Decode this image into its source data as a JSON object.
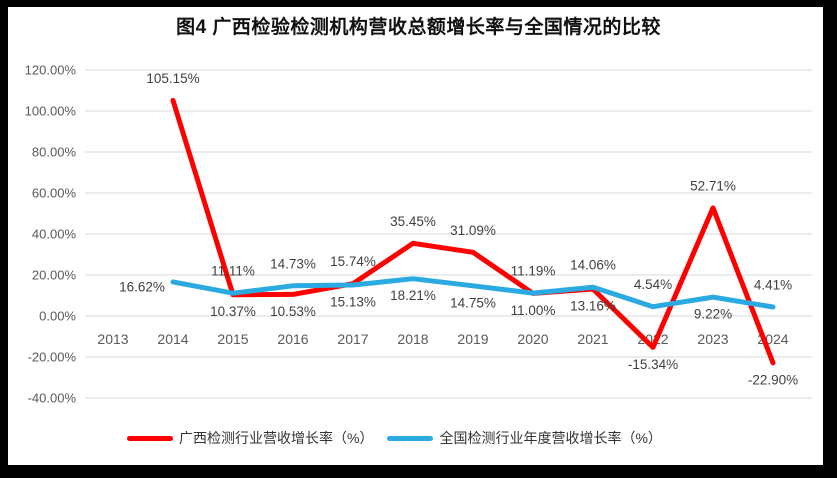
{
  "title": "图4 广西检验检测机构营收总额增长率与全国情况的比较",
  "chart_data": {
    "type": "line",
    "categories": [
      "2013",
      "2014",
      "2015",
      "2016",
      "2017",
      "2018",
      "2019",
      "2020",
      "2021",
      "2022",
      "2023",
      "2024"
    ],
    "ylim": [
      -40,
      120
    ],
    "y_tick_step": 20,
    "y_tick_labels": [
      "120.00%",
      "100.00%",
      "80.00%",
      "60.00%",
      "40.00%",
      "20.00%",
      "0.00%",
      "-20.00%",
      "-40.00%"
    ],
    "grid": true,
    "legend_position": "bottom",
    "series": [
      {
        "name": "广西检测行业营收增长率（%）",
        "color": "#FE0000",
        "start_category": "2014",
        "values": [
          105.15,
          10.37,
          10.53,
          15.74,
          35.45,
          31.09,
          11.0,
          13.16,
          -15.34,
          52.71,
          -22.9
        ],
        "label_positions": [
          "above",
          "below",
          "below",
          "above",
          "above",
          "above",
          "below",
          "below",
          "below",
          "above",
          "below"
        ]
      },
      {
        "name": "全国检测行业年度营收增长率（%）",
        "color": "#2BAAE1",
        "start_category": "2014",
        "values": [
          16.62,
          11.11,
          14.73,
          15.13,
          18.21,
          14.75,
          11.19,
          14.06,
          4.54,
          9.22,
          4.41
        ],
        "label_positions": [
          "left",
          "above",
          "above",
          "below",
          "below",
          "below",
          "above",
          "above",
          "above",
          "below",
          "above"
        ]
      }
    ]
  },
  "styles": {
    "grid_color": "#D9D9D9",
    "axis_text_color": "#595959",
    "label_text_color": "#3F3F3F",
    "frame_color": "#000000"
  }
}
